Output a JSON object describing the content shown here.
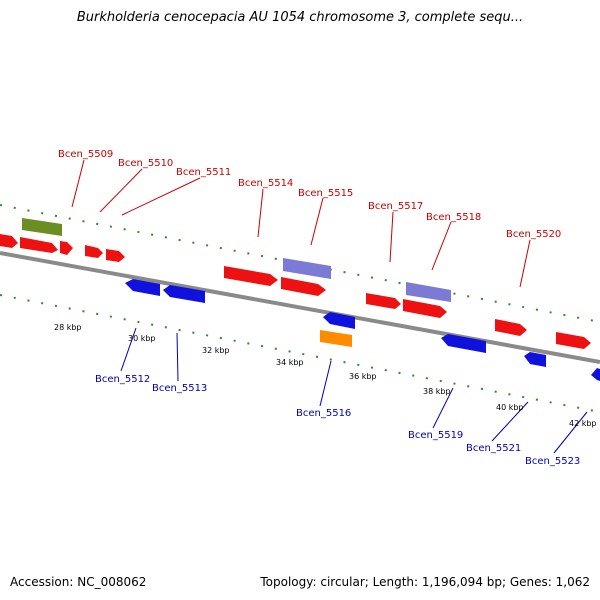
{
  "header": {
    "title": "Burkholderia cenocepacia AU 1054 chromosome 3, complete sequ..."
  },
  "footer": {
    "accession": "Accession: NC_008062",
    "topology": "Topology: circular; Length: 1,196,094 bp; Genes: 1,062"
  },
  "colors": {
    "forward_gene": "#ee1111",
    "reverse_gene": "#1111dd",
    "rna_gene": "#7b7bd6",
    "pseudo_gene": "#6b8e23",
    "other_gene": "#ff8c00",
    "axis": "#888888",
    "tick": "#2e8b2e",
    "forward_label": "#cc0000",
    "reverse_label": "#0000bb"
  },
  "scale_labels": [
    "28 kbp",
    "30 kbp",
    "32 kbp",
    "34 kbp",
    "36 kbp",
    "38 kbp",
    "40 kbp",
    "42 kbp"
  ],
  "forward_labels": [
    "Bcen_5509",
    "Bcen_5510",
    "Bcen_5511",
    "Bcen_5514",
    "Bcen_5515",
    "Bcen_5517",
    "Bcen_5518",
    "Bcen_5520"
  ],
  "reverse_labels": [
    "Bcen_5512",
    "Bcen_5513",
    "Bcen_5516",
    "Bcen_5519",
    "Bcen_5521",
    "Bcen_5523"
  ]
}
